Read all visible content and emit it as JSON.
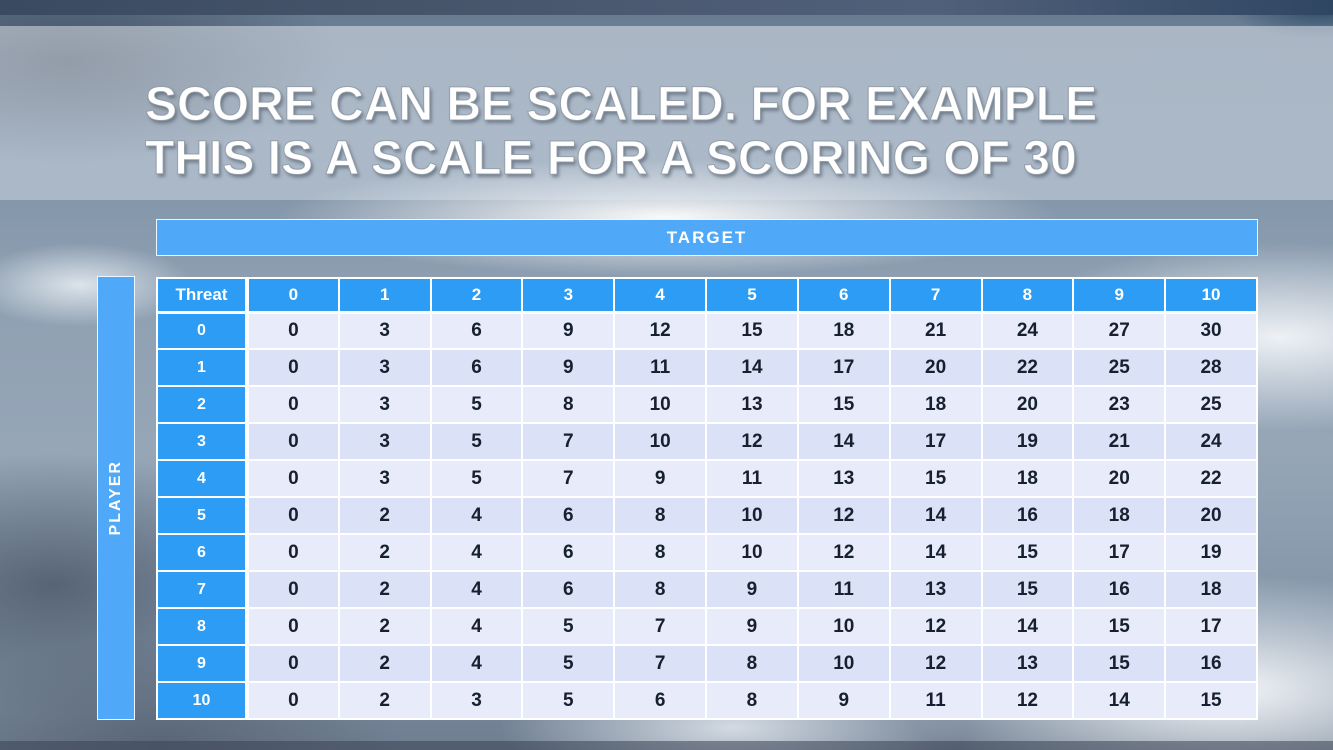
{
  "slide": {
    "title_line1": "SCORE CAN BE SCALED. FOR EXAMPLE",
    "title_line2": "THIS IS A SCALE FOR A SCORING OF 30"
  },
  "table": {
    "target_label": "TARGET",
    "player_label": "PLAYER",
    "corner_label": "Threat",
    "column_headers": [
      "0",
      "1",
      "2",
      "3",
      "4",
      "5",
      "6",
      "7",
      "8",
      "9",
      "10"
    ],
    "rows": [
      {
        "label": "0",
        "values": [
          "0",
          "3",
          "6",
          "9",
          "12",
          "15",
          "18",
          "21",
          "24",
          "27",
          "30"
        ]
      },
      {
        "label": "1",
        "values": [
          "0",
          "3",
          "6",
          "9",
          "11",
          "14",
          "17",
          "20",
          "22",
          "25",
          "28"
        ]
      },
      {
        "label": "2",
        "values": [
          "0",
          "3",
          "5",
          "8",
          "10",
          "13",
          "15",
          "18",
          "20",
          "23",
          "25"
        ]
      },
      {
        "label": "3",
        "values": [
          "0",
          "3",
          "5",
          "7",
          "10",
          "12",
          "14",
          "17",
          "19",
          "21",
          "24"
        ]
      },
      {
        "label": "4",
        "values": [
          "0",
          "3",
          "5",
          "7",
          "9",
          "11",
          "13",
          "15",
          "18",
          "20",
          "22"
        ]
      },
      {
        "label": "5",
        "values": [
          "0",
          "2",
          "4",
          "6",
          "8",
          "10",
          "12",
          "14",
          "16",
          "18",
          "20"
        ]
      },
      {
        "label": "6",
        "values": [
          "0",
          "2",
          "4",
          "6",
          "8",
          "10",
          "12",
          "14",
          "15",
          "17",
          "19"
        ]
      },
      {
        "label": "7",
        "values": [
          "0",
          "2",
          "4",
          "6",
          "8",
          "9",
          "11",
          "13",
          "15",
          "16",
          "18"
        ]
      },
      {
        "label": "8",
        "values": [
          "0",
          "2",
          "4",
          "5",
          "7",
          "9",
          "10",
          "12",
          "14",
          "15",
          "17"
        ]
      },
      {
        "label": "9",
        "values": [
          "0",
          "2",
          "4",
          "5",
          "7",
          "8",
          "10",
          "12",
          "13",
          "15",
          "16"
        ]
      },
      {
        "label": "10",
        "values": [
          "0",
          "2",
          "3",
          "5",
          "6",
          "8",
          "9",
          "11",
          "12",
          "14",
          "15"
        ]
      }
    ]
  },
  "colors": {
    "header_blue": "#2D9CF4",
    "target_blue": "#4FA8F8",
    "row_light": "#E7EBFA",
    "row_dark": "#DBE1F6",
    "cell_text": "#16202E"
  },
  "chart_data": {
    "type": "table",
    "title": "Score scale for a scoring of 30",
    "x_axis_label": "TARGET",
    "y_axis_label": "PLAYER",
    "corner_label": "Threat",
    "columns": [
      0,
      1,
      2,
      3,
      4,
      5,
      6,
      7,
      8,
      9,
      10
    ],
    "row_labels": [
      0,
      1,
      2,
      3,
      4,
      5,
      6,
      7,
      8,
      9,
      10
    ],
    "values": [
      [
        0,
        3,
        6,
        9,
        12,
        15,
        18,
        21,
        24,
        27,
        30
      ],
      [
        0,
        3,
        6,
        9,
        11,
        14,
        17,
        20,
        22,
        25,
        28
      ],
      [
        0,
        3,
        5,
        8,
        10,
        13,
        15,
        18,
        20,
        23,
        25
      ],
      [
        0,
        3,
        5,
        7,
        10,
        12,
        14,
        17,
        19,
        21,
        24
      ],
      [
        0,
        3,
        5,
        7,
        9,
        11,
        13,
        15,
        18,
        20,
        22
      ],
      [
        0,
        2,
        4,
        6,
        8,
        10,
        12,
        14,
        16,
        18,
        20
      ],
      [
        0,
        2,
        4,
        6,
        8,
        10,
        12,
        14,
        15,
        17,
        19
      ],
      [
        0,
        2,
        4,
        6,
        8,
        9,
        11,
        13,
        15,
        16,
        18
      ],
      [
        0,
        2,
        4,
        5,
        7,
        9,
        10,
        12,
        14,
        15,
        17
      ],
      [
        0,
        2,
        4,
        5,
        7,
        8,
        10,
        12,
        13,
        15,
        16
      ],
      [
        0,
        2,
        3,
        5,
        6,
        8,
        9,
        11,
        12,
        14,
        15
      ]
    ]
  }
}
